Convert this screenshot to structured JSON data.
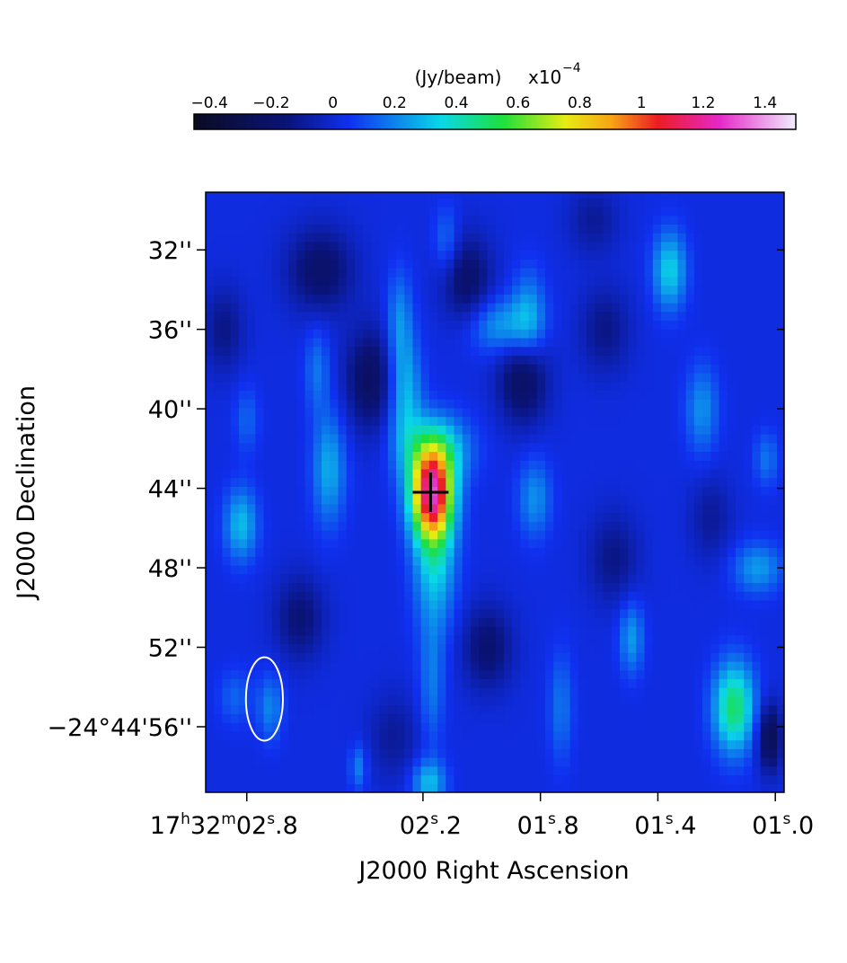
{
  "chart_data": {
    "type": "heatmap",
    "colorbar": {
      "unit_label": "(Jy/beam)",
      "scale_label": "x10",
      "scale_exponent": "−4",
      "range": [
        -0.45,
        1.5
      ],
      "ticks": [
        {
          "value": -0.4,
          "label": "−0.4"
        },
        {
          "value": -0.2,
          "label": "−0.2"
        },
        {
          "value": 0,
          "label": "0"
        },
        {
          "value": 0.2,
          "label": "0.2"
        },
        {
          "value": 0.4,
          "label": "0.4"
        },
        {
          "value": 0.6,
          "label": "0.6"
        },
        {
          "value": 0.8,
          "label": "0.8"
        },
        {
          "value": 1,
          "label": "1"
        },
        {
          "value": 1.2,
          "label": "1.2"
        },
        {
          "value": 1.4,
          "label": "1.4"
        }
      ],
      "colormap": [
        "#0b0b22",
        "#0a1378",
        "#1030f0",
        "#0ad8e8",
        "#1ee03c",
        "#e6ec14",
        "#f6a414",
        "#ec1c24",
        "#e628c8",
        "#f0f0ff"
      ],
      "colormap_stops": [
        -0.45,
        -0.15,
        0.05,
        0.35,
        0.55,
        0.75,
        0.9,
        1.05,
        1.25,
        1.5
      ]
    },
    "xlabel": "J2000 Right Ascension",
    "ylabel": "J2000 Declination",
    "xlim": [
      2.94,
      0.97
    ],
    "ylim": [
      -59.3,
      -29.1
    ],
    "x_ticks": [
      {
        "value": 2.8,
        "main": "17",
        "h": "h",
        "mid": "32",
        "m": "m",
        "sec": "02",
        "s": "s",
        "frac": ".8"
      },
      {
        "value": 2.2,
        "main": "",
        "h": "",
        "mid": "",
        "m": "",
        "sec": "02",
        "s": "s",
        "frac": ".2"
      },
      {
        "value": 1.8,
        "main": "",
        "h": "",
        "mid": "",
        "m": "",
        "sec": "01",
        "s": "s",
        "frac": ".8"
      },
      {
        "value": 1.4,
        "main": "",
        "h": "",
        "mid": "",
        "m": "",
        "sec": "01",
        "s": "s",
        "frac": ".4"
      },
      {
        "value": 1.0,
        "main": "",
        "h": "",
        "mid": "",
        "m": "",
        "sec": "01",
        "s": "s",
        "frac": ".0"
      }
    ],
    "y_ticks": [
      {
        "value": -32,
        "label": "32''"
      },
      {
        "value": -36,
        "label": "36''"
      },
      {
        "value": -40,
        "label": "40''"
      },
      {
        "value": -44,
        "label": "44''"
      },
      {
        "value": -48,
        "label": "48''"
      },
      {
        "value": -52,
        "label": "52''"
      },
      {
        "value": -56,
        "label": "−24°44'56''"
      }
    ],
    "background_level": 0.02,
    "sources": [
      {
        "x": 2.17,
        "y": -44.2,
        "sx": 0.05,
        "sy": 1.6,
        "amp": 1.08
      },
      {
        "x": 2.16,
        "y": -47.5,
        "sx": 0.05,
        "sy": 2.6,
        "amp": 0.32
      },
      {
        "x": 2.15,
        "y": -42.0,
        "sx": 0.08,
        "sy": 1.2,
        "amp": 0.3
      },
      {
        "x": 2.26,
        "y": -39.5,
        "sx": 0.04,
        "sy": 2.2,
        "amp": 0.28
      },
      {
        "x": 2.28,
        "y": -35.5,
        "sx": 0.03,
        "sy": 1.8,
        "amp": 0.18
      },
      {
        "x": 1.93,
        "y": -35.8,
        "sx": 0.08,
        "sy": 1.0,
        "amp": 0.24
      },
      {
        "x": 1.84,
        "y": -35.2,
        "sx": 0.04,
        "sy": 1.6,
        "amp": 0.2
      },
      {
        "x": 2.12,
        "y": -31.5,
        "sx": 0.03,
        "sy": 1.2,
        "amp": 0.15
      },
      {
        "x": 2.52,
        "y": -43.0,
        "sx": 0.04,
        "sy": 2.0,
        "amp": 0.25
      },
      {
        "x": 2.56,
        "y": -38.0,
        "sx": 0.03,
        "sy": 1.5,
        "amp": 0.15
      },
      {
        "x": 2.82,
        "y": -45.8,
        "sx": 0.04,
        "sy": 1.3,
        "amp": 0.28
      },
      {
        "x": 2.8,
        "y": -40.5,
        "sx": 0.03,
        "sy": 1.2,
        "amp": 0.12
      },
      {
        "x": 1.36,
        "y": -33.0,
        "sx": 0.04,
        "sy": 1.4,
        "amp": 0.32
      },
      {
        "x": 1.25,
        "y": -40.0,
        "sx": 0.04,
        "sy": 1.6,
        "amp": 0.2
      },
      {
        "x": 1.14,
        "y": -55.0,
        "sx": 0.05,
        "sy": 1.6,
        "amp": 0.48
      },
      {
        "x": 1.06,
        "y": -48.0,
        "sx": 0.06,
        "sy": 0.9,
        "amp": 0.22
      },
      {
        "x": 1.03,
        "y": -42.5,
        "sx": 0.03,
        "sy": 1.0,
        "amp": 0.15
      },
      {
        "x": 1.82,
        "y": -44.5,
        "sx": 0.04,
        "sy": 1.4,
        "amp": 0.2
      },
      {
        "x": 1.73,
        "y": -55.0,
        "sx": 0.03,
        "sy": 2.0,
        "amp": 0.15
      },
      {
        "x": 1.49,
        "y": -51.5,
        "sx": 0.03,
        "sy": 1.3,
        "amp": 0.22
      },
      {
        "x": 2.17,
        "y": -54.0,
        "sx": 0.03,
        "sy": 2.2,
        "amp": 0.15
      },
      {
        "x": 2.18,
        "y": -58.8,
        "sx": 0.04,
        "sy": 0.8,
        "amp": 0.28
      },
      {
        "x": 2.72,
        "y": -55.0,
        "sx": 0.03,
        "sy": 1.2,
        "amp": 0.18
      },
      {
        "x": 2.84,
        "y": -54.5,
        "sx": 0.04,
        "sy": 1.0,
        "amp": 0.12
      },
      {
        "x": 2.42,
        "y": -58.0,
        "sx": 0.02,
        "sy": 0.8,
        "amp": 0.18
      },
      {
        "x": 2.55,
        "y": -33.0,
        "sx": 0.08,
        "sy": 1.5,
        "amp": -0.22
      },
      {
        "x": 2.38,
        "y": -38.5,
        "sx": 0.06,
        "sy": 1.8,
        "amp": -0.25
      },
      {
        "x": 2.05,
        "y": -33.5,
        "sx": 0.06,
        "sy": 1.6,
        "amp": -0.22
      },
      {
        "x": 1.86,
        "y": -38.5,
        "sx": 0.06,
        "sy": 1.6,
        "amp": -0.25
      },
      {
        "x": 2.88,
        "y": -36.0,
        "sx": 0.05,
        "sy": 1.5,
        "amp": -0.15
      },
      {
        "x": 2.62,
        "y": -50.5,
        "sx": 0.06,
        "sy": 1.5,
        "amp": -0.18
      },
      {
        "x": 1.98,
        "y": -52.0,
        "sx": 0.06,
        "sy": 1.5,
        "amp": -0.2
      },
      {
        "x": 1.55,
        "y": -47.5,
        "sx": 0.06,
        "sy": 1.6,
        "amp": -0.15
      },
      {
        "x": 1.58,
        "y": -36.0,
        "sx": 0.06,
        "sy": 1.5,
        "amp": -0.15
      },
      {
        "x": 1.02,
        "y": -56.5,
        "sx": 0.03,
        "sy": 1.2,
        "amp": -0.3
      },
      {
        "x": 1.22,
        "y": -45.5,
        "sx": 0.05,
        "sy": 1.5,
        "amp": -0.12
      },
      {
        "x": 1.62,
        "y": -30.5,
        "sx": 0.06,
        "sy": 1.2,
        "amp": -0.12
      },
      {
        "x": 2.3,
        "y": -56.5,
        "sx": 0.06,
        "sy": 1.5,
        "amp": -0.12
      }
    ],
    "marker": {
      "x": 2.174,
      "y": -44.2,
      "symbol": "cross",
      "color": "#000000"
    },
    "beam": {
      "x": 2.74,
      "y": -54.6,
      "rx": 0.063,
      "ry": 2.1,
      "color": "#ffffff"
    },
    "pixel_size": {
      "dx": 0.0282,
      "dy": 0.44
    }
  }
}
